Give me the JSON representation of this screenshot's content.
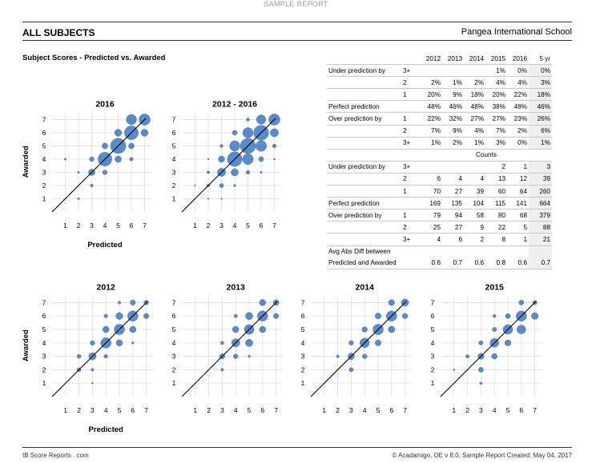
{
  "banner": "SAMPLE REPORT",
  "header": {
    "title": "ALL SUBJECTS",
    "school": "Pangea International School"
  },
  "section_title": "Subject Scores - Predicted vs. Awarded",
  "footer": {
    "left": "IB Score Reports . com",
    "right": "© Acadamigo,  OE v 8.0,  Sample Report Created: May 04, 2017"
  },
  "colors": {
    "bubble": "#4a7ec4",
    "bubble_stroke": "#2f5f9e",
    "grid": "#dcdcdc",
    "diagonal": "#000000"
  },
  "table": {
    "headers": [
      "2012",
      "2013",
      "2014",
      "2015",
      "2016",
      "5 yr"
    ],
    "rows": [
      {
        "label": "Under prediction by",
        "sub": "3+",
        "vals": [
          "",
          "",
          "",
          "1%",
          "0%",
          "0%"
        ],
        "rule": true
      },
      {
        "label": "",
        "sub": "2",
        "vals": [
          "2%",
          "1%",
          "2%",
          "4%",
          "4%",
          "3%"
        ],
        "rule": true
      },
      {
        "label": "",
        "sub": "1",
        "vals": [
          "20%",
          "9%",
          "18%",
          "20%",
          "22%",
          "18%"
        ],
        "rule": true
      },
      {
        "label": "Perfect prediction",
        "sub": "",
        "vals": [
          "48%",
          "46%",
          "48%",
          "38%",
          "48%",
          "46%"
        ],
        "rule": true
      },
      {
        "label": "Over prediction by",
        "sub": "1",
        "vals": [
          "22%",
          "32%",
          "27%",
          "27%",
          "23%",
          "26%"
        ],
        "rule": true
      },
      {
        "label": "",
        "sub": "2",
        "vals": [
          "7%",
          "9%",
          "4%",
          "7%",
          "2%",
          "6%"
        ],
        "rule": true
      },
      {
        "label": "",
        "sub": "3+",
        "vals": [
          "1%",
          "2%",
          "1%",
          "3%",
          "0%",
          "1%"
        ],
        "rule": true
      },
      {
        "counts_header": "Counts",
        "rule": true
      },
      {
        "label": "Under prediction by",
        "sub": "3+",
        "vals": [
          "",
          "",
          "",
          "2",
          "1",
          "3"
        ],
        "rule": true
      },
      {
        "label": "",
        "sub": "2",
        "vals": [
          "6",
          "4",
          "4",
          "13",
          "12",
          "39"
        ],
        "rule": true
      },
      {
        "label": "",
        "sub": "1",
        "vals": [
          "70",
          "27",
          "39",
          "60",
          "64",
          "260"
        ],
        "rule": true
      },
      {
        "label": "Perfect prediction",
        "sub": "",
        "vals": [
          "169",
          "135",
          "104",
          "115",
          "141",
          "664"
        ],
        "rule": true
      },
      {
        "label": "Over prediction by",
        "sub": "1",
        "vals": [
          "79",
          "94",
          "58",
          "80",
          "68",
          "379"
        ],
        "rule": true
      },
      {
        "label": "",
        "sub": "2",
        "vals": [
          "25",
          "27",
          "9",
          "22",
          "5",
          "88"
        ],
        "rule": true
      },
      {
        "label": "",
        "sub": "3+",
        "vals": [
          "4",
          "6",
          "2",
          "8",
          "1",
          "21"
        ],
        "rule": true
      },
      {
        "label": "Avg Abs Diff between",
        "sub": "",
        "vals": [
          "",
          "",
          "",
          "",
          "",
          ""
        ],
        "rule": false
      },
      {
        "label": "Predicted and Awarded",
        "sub": "",
        "vals": [
          "0.6",
          "0.7",
          "0.6",
          "0.8",
          "0.6",
          "0.7"
        ],
        "rule": true
      }
    ]
  },
  "chart_data": [
    {
      "type": "scatter",
      "title": "2016",
      "xlabel": "Predicted",
      "ylabel": "Awarded",
      "xlim": [
        0,
        7
      ],
      "ylim": [
        0,
        7
      ],
      "ticks": [
        1,
        2,
        3,
        4,
        5,
        6,
        7
      ],
      "points": [
        [
          2,
          1,
          1
        ],
        [
          3,
          2,
          2
        ],
        [
          3,
          3,
          10
        ],
        [
          4,
          3,
          5
        ],
        [
          3,
          4,
          5
        ],
        [
          4,
          4,
          45
        ],
        [
          5,
          4,
          10
        ],
        [
          6,
          4,
          3
        ],
        [
          4,
          5,
          8
        ],
        [
          5,
          5,
          55
        ],
        [
          6,
          5,
          8
        ],
        [
          5,
          6,
          12
        ],
        [
          6,
          6,
          45
        ],
        [
          7,
          6,
          12
        ],
        [
          6,
          7,
          25
        ],
        [
          7,
          7,
          30
        ],
        [
          1,
          4,
          1
        ],
        [
          2,
          3,
          1
        ]
      ]
    },
    {
      "type": "scatter",
      "title": "2012 - 2016",
      "xlabel": "",
      "ylabel": "",
      "xlim": [
        0,
        7
      ],
      "ylim": [
        0,
        7
      ],
      "ticks": [
        1,
        2,
        3,
        4,
        5,
        6,
        7
      ],
      "points": [
        [
          3,
          1,
          2
        ],
        [
          2,
          2,
          8
        ],
        [
          3,
          2,
          18
        ],
        [
          4,
          2,
          6
        ],
        [
          2,
          3,
          8
        ],
        [
          3,
          3,
          70
        ],
        [
          4,
          3,
          55
        ],
        [
          5,
          3,
          15
        ],
        [
          6,
          3,
          4
        ],
        [
          3,
          4,
          40
        ],
        [
          4,
          4,
          220
        ],
        [
          5,
          4,
          120
        ],
        [
          6,
          4,
          25
        ],
        [
          7,
          4,
          3
        ],
        [
          3,
          5,
          10
        ],
        [
          4,
          5,
          110
        ],
        [
          5,
          5,
          240
        ],
        [
          6,
          5,
          120
        ],
        [
          7,
          5,
          15
        ],
        [
          4,
          6,
          25
        ],
        [
          5,
          6,
          110
        ],
        [
          6,
          6,
          230
        ],
        [
          7,
          6,
          70
        ],
        [
          5,
          7,
          10
        ],
        [
          6,
          7,
          90
        ],
        [
          7,
          7,
          130
        ],
        [
          1,
          2,
          1
        ],
        [
          2,
          4,
          1
        ],
        [
          2,
          1,
          1
        ]
      ]
    },
    {
      "type": "scatter",
      "title": "2012",
      "xlabel": "Predicted",
      "ylabel": "Awarded",
      "xlim": [
        0,
        7
      ],
      "ylim": [
        0,
        7
      ],
      "ticks": [
        1,
        2,
        3,
        4,
        5,
        6,
        7
      ],
      "points": [
        [
          2,
          2,
          6
        ],
        [
          3,
          2,
          3
        ],
        [
          2,
          3,
          6
        ],
        [
          3,
          3,
          20
        ],
        [
          4,
          3,
          5
        ],
        [
          3,
          4,
          8
        ],
        [
          4,
          4,
          40
        ],
        [
          5,
          4,
          15
        ],
        [
          6,
          4,
          2
        ],
        [
          4,
          5,
          15
        ],
        [
          5,
          5,
          40
        ],
        [
          6,
          5,
          15
        ],
        [
          4,
          6,
          5
        ],
        [
          5,
          6,
          18
        ],
        [
          6,
          6,
          40
        ],
        [
          7,
          6,
          10
        ],
        [
          5,
          7,
          3
        ],
        [
          6,
          7,
          10
        ],
        [
          7,
          7,
          8
        ],
        [
          3,
          1,
          1
        ]
      ]
    },
    {
      "type": "scatter",
      "title": "2013",
      "xlabel": "",
      "ylabel": "",
      "xlim": [
        0,
        7
      ],
      "ylim": [
        0,
        7
      ],
      "ticks": [
        1,
        2,
        3,
        4,
        5,
        6,
        7
      ],
      "points": [
        [
          3,
          2,
          3
        ],
        [
          3,
          3,
          10
        ],
        [
          4,
          3,
          8
        ],
        [
          3,
          4,
          4
        ],
        [
          4,
          4,
          25
        ],
        [
          5,
          4,
          20
        ],
        [
          4,
          5,
          15
        ],
        [
          5,
          5,
          35
        ],
        [
          6,
          5,
          15
        ],
        [
          4,
          6,
          4
        ],
        [
          5,
          6,
          20
        ],
        [
          6,
          6,
          40
        ],
        [
          7,
          6,
          10
        ],
        [
          6,
          7,
          15
        ],
        [
          7,
          7,
          12
        ],
        [
          5,
          3,
          2
        ]
      ]
    },
    {
      "type": "scatter",
      "title": "2014",
      "xlabel": "",
      "ylabel": "",
      "xlim": [
        0,
        7
      ],
      "ylim": [
        0,
        7
      ],
      "ticks": [
        1,
        2,
        3,
        4,
        5,
        6,
        7
      ],
      "points": [
        [
          3,
          2,
          5
        ],
        [
          2,
          3,
          2
        ],
        [
          3,
          3,
          12
        ],
        [
          4,
          3,
          6
        ],
        [
          3,
          4,
          6
        ],
        [
          4,
          4,
          25
        ],
        [
          5,
          4,
          10
        ],
        [
          4,
          5,
          8
        ],
        [
          5,
          5,
          30
        ],
        [
          6,
          5,
          12
        ],
        [
          5,
          6,
          10
        ],
        [
          6,
          6,
          30
        ],
        [
          7,
          6,
          8
        ],
        [
          6,
          7,
          10
        ],
        [
          7,
          7,
          15
        ]
      ]
    },
    {
      "type": "scatter",
      "title": "2015",
      "xlabel": "",
      "ylabel": "",
      "xlim": [
        0,
        7
      ],
      "ylim": [
        0,
        7
      ],
      "ticks": [
        1,
        2,
        3,
        4,
        5,
        6,
        7
      ],
      "points": [
        [
          1,
          2,
          1
        ],
        [
          3,
          1,
          2
        ],
        [
          3,
          2,
          8
        ],
        [
          2,
          3,
          4
        ],
        [
          3,
          3,
          12
        ],
        [
          4,
          3,
          10
        ],
        [
          3,
          4,
          6
        ],
        [
          4,
          4,
          25
        ],
        [
          5,
          4,
          12
        ],
        [
          4,
          5,
          6
        ],
        [
          5,
          5,
          30
        ],
        [
          6,
          5,
          25
        ],
        [
          4,
          6,
          3
        ],
        [
          5,
          6,
          8
        ],
        [
          6,
          6,
          35
        ],
        [
          7,
          6,
          15
        ],
        [
          6,
          7,
          8
        ],
        [
          7,
          7,
          6
        ]
      ]
    }
  ]
}
